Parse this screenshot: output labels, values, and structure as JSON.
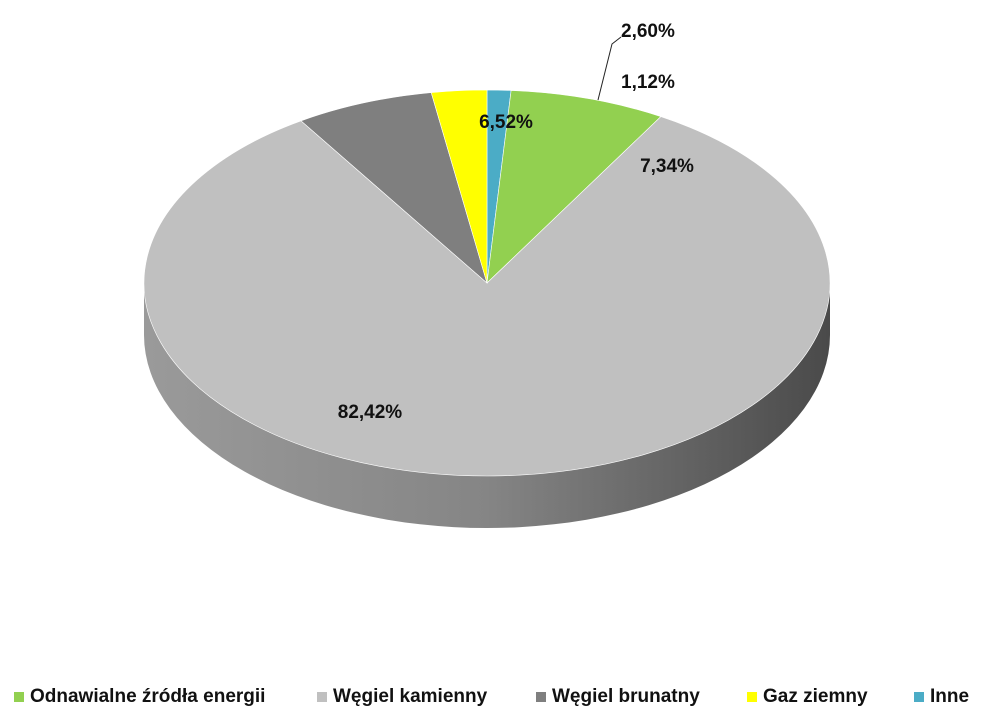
{
  "chart_data": {
    "type": "pie",
    "style": "3d",
    "title": "",
    "categories": [
      "Odnawialne źródła energii",
      "Węgiel kamienny",
      "Węgiel brunatny",
      "Gaz ziemny",
      "Inne"
    ],
    "values": [
      7.34,
      82.42,
      6.52,
      2.6,
      1.12
    ],
    "value_labels": [
      "7,34%",
      "82,42%",
      "6,52%",
      "2,60%",
      "1,12%"
    ],
    "colors": [
      "#92d050",
      "#c0c0c0",
      "#7f7f7f",
      "#ffff00",
      "#4bacc6"
    ],
    "side_colors": [
      "#5f8a2f",
      "#8c8c8c",
      "#555555",
      "#b3b300",
      "#2f7f93"
    ],
    "legend_position": "bottom",
    "slice_order_clockwise_from_top": [
      "Inne",
      "Odnawialne źródła energii",
      "Węgiel kamienny",
      "Węgiel brunatny",
      "Gaz ziemny"
    ]
  },
  "legend": {
    "items": [
      {
        "label": "Odnawialne źródła energii",
        "color": "#92d050"
      },
      {
        "label": "Węgiel kamienny",
        "color": "#c0c0c0"
      },
      {
        "label": "Węgiel brunatny",
        "color": "#7f7f7f"
      },
      {
        "label": "Gaz ziemny",
        "color": "#ffff00"
      },
      {
        "label": "Inne",
        "color": "#4bacc6"
      }
    ]
  }
}
